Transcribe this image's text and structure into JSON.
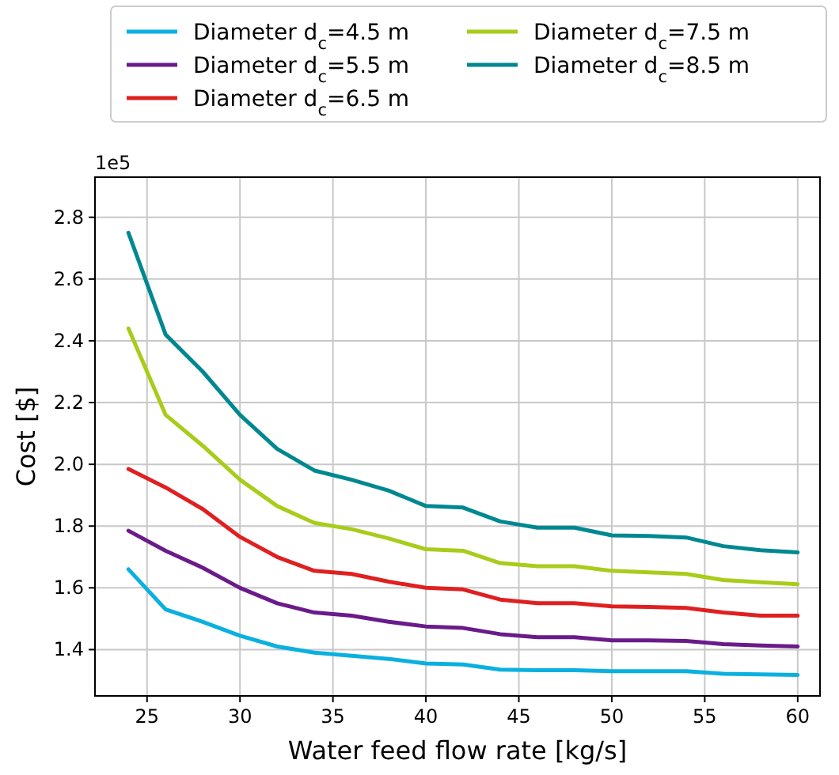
{
  "chart_data": {
    "type": "line",
    "xlabel": "Water feed flow rate [kg/s]",
    "ylabel": "Cost [$]",
    "annotations": [
      "1e5"
    ],
    "x": [
      24,
      26,
      28,
      30,
      32,
      34,
      36,
      38,
      40,
      42,
      44,
      46,
      48,
      50,
      52,
      54,
      56,
      58,
      60
    ],
    "xlim": [
      22.2,
      61.2
    ],
    "xticks": [
      25,
      30,
      35,
      40,
      45,
      50,
      55,
      60
    ],
    "ylim": [
      1.25,
      2.93
    ],
    "yticks": [
      {
        "value": 1.4,
        "label": "1.4"
      },
      {
        "value": 1.6,
        "label": "1.6"
      },
      {
        "value": 1.8,
        "label": "1.8"
      },
      {
        "value": 2.0,
        "label": "2.0"
      },
      {
        "value": 2.2,
        "label": "2.2"
      },
      {
        "value": 2.4,
        "label": "2.4"
      },
      {
        "value": 2.6,
        "label": "2.6"
      },
      {
        "value": 2.8,
        "label": "2.8"
      }
    ],
    "grid": true,
    "legend": "top",
    "marker": "none",
    "line_style": "solid",
    "series": [
      {
        "name": "Diameter d$_{c}$=4.5 m",
        "color": "#0ab0e0",
        "values": [
          1.66,
          1.53,
          1.49,
          1.445,
          1.41,
          1.39,
          1.38,
          1.37,
          1.355,
          1.352,
          1.335,
          1.333,
          1.333,
          1.33,
          1.33,
          1.33,
          1.322,
          1.32,
          1.318
        ]
      },
      {
        "name": "Diameter d$_{c}$=5.5 m",
        "color": "#6a1b8a",
        "values": [
          1.785,
          1.72,
          1.665,
          1.6,
          1.55,
          1.52,
          1.51,
          1.49,
          1.475,
          1.47,
          1.45,
          1.44,
          1.44,
          1.43,
          1.43,
          1.428,
          1.418,
          1.413,
          1.41
        ]
      },
      {
        "name": "Diameter d$_{c}$=6.5 m",
        "color": "#e02020",
        "values": [
          1.985,
          1.925,
          1.855,
          1.765,
          1.7,
          1.655,
          1.645,
          1.62,
          1.6,
          1.595,
          1.562,
          1.55,
          1.55,
          1.54,
          1.538,
          1.535,
          1.52,
          1.51,
          1.51
        ]
      },
      {
        "name": "Diameter d$_{c}$=7.5 m",
        "color": "#a8cc1a",
        "values": [
          2.44,
          2.16,
          2.06,
          1.95,
          1.865,
          1.81,
          1.79,
          1.76,
          1.725,
          1.72,
          1.68,
          1.67,
          1.67,
          1.655,
          1.65,
          1.645,
          1.625,
          1.618,
          1.612
        ]
      },
      {
        "name": "Diameter d$_{c}$=8.5 m",
        "color": "#008890",
        "values": [
          2.75,
          2.42,
          2.3,
          2.16,
          2.05,
          1.98,
          1.95,
          1.915,
          1.865,
          1.86,
          1.815,
          1.795,
          1.795,
          1.77,
          1.768,
          1.763,
          1.735,
          1.722,
          1.715
        ]
      }
    ]
  }
}
